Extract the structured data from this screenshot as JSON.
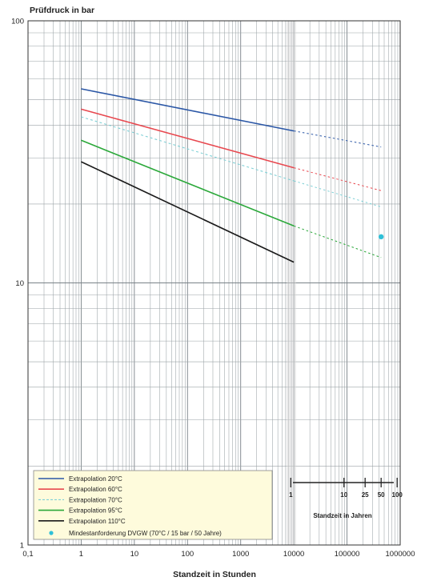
{
  "chart_data": {
    "type": "line",
    "ylabel": "Prüfdruck in bar",
    "xlabel": "Standzeit in Stunden",
    "x_scale": "log",
    "y_scale": "log",
    "xlim": [
      0.1,
      1000000
    ],
    "ylim": [
      1,
      100
    ],
    "x_tick_labels": [
      "0,1",
      "1",
      "10",
      "100",
      "1000",
      "10000",
      "100000",
      "1000000"
    ],
    "x_tick_values": [
      0.1,
      1,
      10,
      100,
      1000,
      10000,
      100000,
      1000000
    ],
    "y_tick_labels": [
      "1",
      "10",
      "100"
    ],
    "y_tick_values": [
      1,
      10,
      100
    ],
    "grid": true,
    "years_axis": {
      "label": "Standzeit in Jahren",
      "tick_labels": [
        "1",
        "10",
        "25",
        "50",
        "100"
      ],
      "tick_years": [
        1,
        10,
        25,
        50,
        100
      ]
    },
    "series": [
      {
        "name": "Extrapolation 20°C",
        "color": "#2b57a6",
        "style": "solid",
        "x": [
          1,
          10000
        ],
        "y": [
          55,
          38
        ],
        "extrapolated": {
          "x": [
            10000,
            438000
          ],
          "y": [
            38,
            33
          ]
        }
      },
      {
        "name": "Extrapolation 60°C",
        "color": "#e8484f",
        "style": "solid",
        "x": [
          1,
          10000
        ],
        "y": [
          46,
          27.5
        ],
        "extrapolated": {
          "x": [
            10000,
            438000
          ],
          "y": [
            27.5,
            22.5
          ]
        }
      },
      {
        "name": "Extrapolation 70°C",
        "color": "#7fd0d6",
        "style": "dashed",
        "x": [
          1,
          10000
        ],
        "y": [
          43,
          24.5
        ],
        "extrapolated": {
          "x": [
            10000,
            438000
          ],
          "y": [
            24.5,
            19.5
          ]
        }
      },
      {
        "name": "Extrapolation 95°C",
        "color": "#2ba83a",
        "style": "solid",
        "x": [
          1,
          10000
        ],
        "y": [
          35,
          16.5
        ],
        "extrapolated": {
          "x": [
            10000,
            438000
          ],
          "y": [
            16.5,
            12.5
          ]
        }
      },
      {
        "name": "Extrapolation 110°C",
        "color": "#1a1a1a",
        "style": "solid",
        "x": [
          1,
          10000
        ],
        "y": [
          29,
          12
        ],
        "extrapolated": null
      }
    ],
    "points": [
      {
        "name": "Mindestanforderung DVGW (70°C / 15 bar / 50 Jahre)",
        "color": "#2fc0d8",
        "x": 438000,
        "y": 15
      }
    ],
    "legend_placement": "bottom-left"
  }
}
